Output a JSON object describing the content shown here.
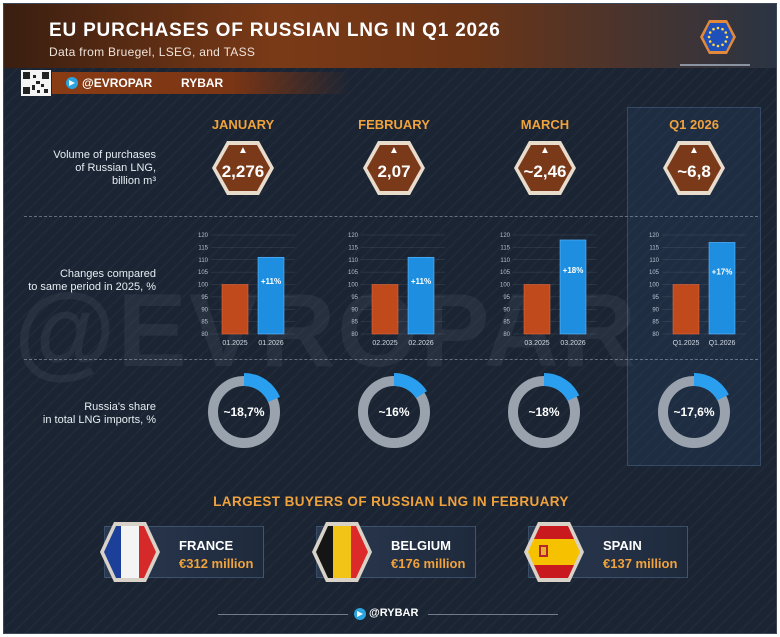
{
  "header": {
    "title": "EU PURCHASES OF RUSSIAN LNG IN Q1 2026",
    "subtitle": "Data from Bruegel, LSEG, and TASS",
    "flag_icon": "eu-flag-icon",
    "brand_handle": "@EVROPAR",
    "brand_name": "RYBAR"
  },
  "watermark": "@EVROPAR",
  "colors": {
    "background": "#1a2433",
    "accent": "#f0a23c",
    "bar_2025": "#c04a1c",
    "bar_2026": "#1e8fe0",
    "donut_track": "#9aa3ad",
    "donut_share": "#2a9ff0"
  },
  "columns": [
    {
      "label": "JANUARY"
    },
    {
      "label": "FEBRUARY"
    },
    {
      "label": "MARCH"
    },
    {
      "label": "Q1 2026"
    }
  ],
  "row_labels": {
    "volume": [
      "Volume of purchases",
      "of Russian LNG,",
      "billion m³"
    ],
    "change": [
      "Changes compared",
      "to same period in 2025, %"
    ],
    "share": [
      "Russia's share",
      "in total LNG imports, %"
    ]
  },
  "chart_data": [
    {
      "type": "bar",
      "title": "JANUARY",
      "volume_label": "2,276",
      "volume_bcm": 2.276,
      "categories": [
        "01.2025",
        "01.2026"
      ],
      "values": [
        100,
        111
      ],
      "change_label": "+11%",
      "ylim": [
        80,
        120
      ],
      "yticks": [
        80,
        85,
        90,
        95,
        100,
        105,
        110,
        115,
        120
      ],
      "share_label": "~18,7%",
      "share_pct": 18.7
    },
    {
      "type": "bar",
      "title": "FEBRUARY",
      "volume_label": "2,07",
      "volume_bcm": 2.07,
      "categories": [
        "02.2025",
        "02.2026"
      ],
      "values": [
        100,
        111
      ],
      "change_label": "+11%",
      "ylim": [
        80,
        120
      ],
      "yticks": [
        80,
        85,
        90,
        95,
        100,
        105,
        110,
        115,
        120
      ],
      "share_label": "~16%",
      "share_pct": 16
    },
    {
      "type": "bar",
      "title": "MARCH",
      "volume_label": "~2,46",
      "volume_bcm": 2.46,
      "categories": [
        "03.2025",
        "03.2026"
      ],
      "values": [
        100,
        118
      ],
      "change_label": "+18%",
      "ylim": [
        80,
        120
      ],
      "yticks": [
        80,
        85,
        90,
        95,
        100,
        105,
        110,
        115,
        120
      ],
      "share_label": "~18%",
      "share_pct": 18
    },
    {
      "type": "bar",
      "title": "Q1 2026",
      "volume_label": "~6,8",
      "volume_bcm": 6.8,
      "categories": [
        "Q1.2025",
        "Q1.2026"
      ],
      "values": [
        100,
        117
      ],
      "change_label": "+17%",
      "ylim": [
        80,
        120
      ],
      "yticks": [
        80,
        85,
        90,
        95,
        100,
        105,
        110,
        115,
        120
      ],
      "share_label": "~17,6%",
      "share_pct": 17.6
    }
  ],
  "buyers": {
    "title": "LARGEST BUYERS OF RUSSIAN LNG IN FEBRUARY",
    "items": [
      {
        "country": "FRANCE",
        "amount": "€312 million",
        "flag_icon": "france-flag-icon"
      },
      {
        "country": "BELGIUM",
        "amount": "€176 million",
        "flag_icon": "belgium-flag-icon"
      },
      {
        "country": "SPAIN",
        "amount": "€137 million",
        "flag_icon": "spain-flag-icon"
      }
    ]
  },
  "footer": {
    "handle": "@RYBAR",
    "icon": "telegram-icon"
  }
}
